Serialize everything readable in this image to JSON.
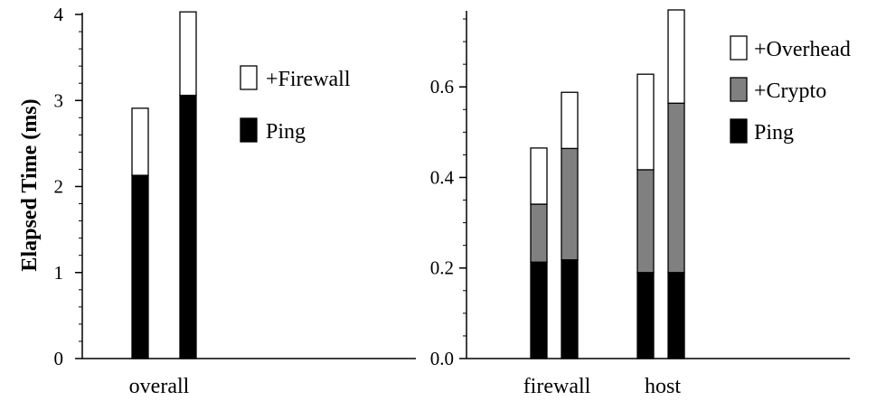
{
  "chart_data": [
    {
      "type": "bar",
      "stacked": true,
      "ylabel": "Elapsed Time (ms)",
      "ylim": [
        0,
        4
      ],
      "yticks": [
        {
          "value": 0,
          "label": "0"
        },
        {
          "value": 1,
          "label": "1"
        },
        {
          "value": 2,
          "label": "2"
        },
        {
          "value": 3,
          "label": "3"
        },
        {
          "value": 4,
          "label": "4"
        }
      ],
      "groups": [
        "overall"
      ],
      "legend_position": "right",
      "series": [
        {
          "name": "Ping",
          "color": "#000000"
        },
        {
          "name": "+Firewall",
          "color": "#ffffff"
        }
      ],
      "bars": [
        {
          "group": "overall",
          "values": [
            2.13,
            0.78
          ]
        },
        {
          "group": "overall",
          "values": [
            3.06,
            0.97
          ]
        }
      ]
    },
    {
      "type": "bar",
      "stacked": true,
      "ylabel": "",
      "ylim": [
        0,
        0.76
      ],
      "yticks": [
        {
          "value": 0,
          "label": "0.0"
        },
        {
          "value": 0.2,
          "label": "0.2"
        },
        {
          "value": 0.4,
          "label": "0.4"
        },
        {
          "value": 0.6,
          "label": "0.6"
        }
      ],
      "groups": [
        "firewall",
        "host"
      ],
      "legend_position": "top-right",
      "series": [
        {
          "name": "Ping",
          "color": "#000000"
        },
        {
          "name": "+Crypto",
          "color": "#808080"
        },
        {
          "name": "+Overhead",
          "color": "#ffffff"
        }
      ],
      "bars": [
        {
          "group": "firewall",
          "values": [
            0.213,
            0.128,
            0.124
          ]
        },
        {
          "group": "firewall",
          "values": [
            0.218,
            0.246,
            0.124
          ]
        },
        {
          "group": "host",
          "values": [
            0.19,
            0.227,
            0.211
          ]
        },
        {
          "group": "host",
          "values": [
            0.19,
            0.374,
            0.206
          ]
        }
      ]
    }
  ]
}
